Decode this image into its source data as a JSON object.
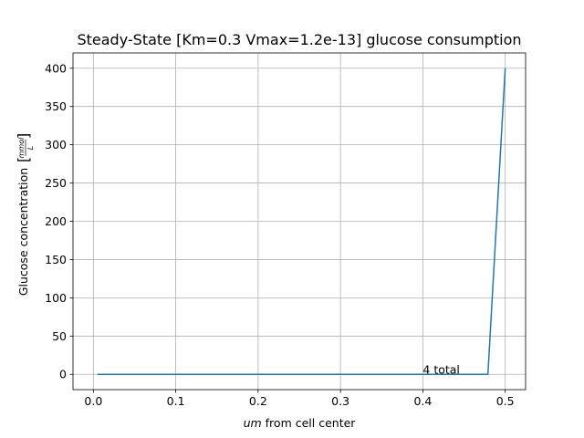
{
  "chart_data": {
    "type": "line",
    "title": "Steady-State [Km=0.3 Vmax=1.2e-13] glucose consumption",
    "xlabel_italic": "um",
    "xlabel_rest": " from cell center",
    "ylabel_main": "Glucose concentration",
    "ylabel_unit_num": "mmol",
    "ylabel_unit_den": "L",
    "xlim": [
      -0.02475,
      0.52475
    ],
    "ylim": [
      -20,
      420
    ],
    "x_ticks": [
      0.0,
      0.1,
      0.2,
      0.3,
      0.4,
      0.5
    ],
    "x_tick_labels": [
      "0.0",
      "0.1",
      "0.2",
      "0.3",
      "0.4",
      "0.5"
    ],
    "y_ticks": [
      0,
      50,
      100,
      150,
      200,
      250,
      300,
      350,
      400
    ],
    "y_tick_labels": [
      "0",
      "50",
      "100",
      "150",
      "200",
      "250",
      "300",
      "350",
      "400"
    ],
    "grid": true,
    "series": [
      {
        "color": "#1f77b4",
        "x": [
          0.005,
          0.1,
          0.2,
          0.3,
          0.4,
          0.479,
          0.5
        ],
        "y": [
          0,
          0,
          0,
          0,
          0,
          0,
          400
        ]
      }
    ],
    "annotation": {
      "text": "4 total",
      "x": 0.4,
      "y": 0
    }
  }
}
